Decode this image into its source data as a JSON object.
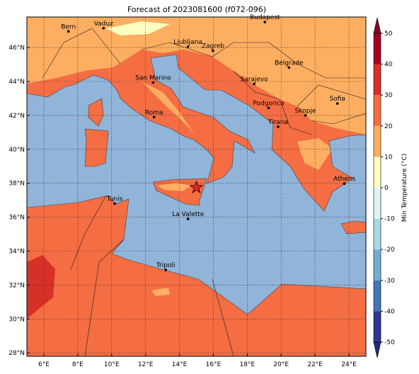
{
  "chart_data": {
    "type": "map",
    "title": "Forecast of 2023081600 (f072-096)",
    "xlim": [
      5,
      25
    ],
    "ylim": [
      27.8,
      47.8
    ],
    "xticks": [
      {
        "value": 6,
        "label": "6°E"
      },
      {
        "value": 8,
        "label": "8°E"
      },
      {
        "value": 10,
        "label": "10°E"
      },
      {
        "value": 12,
        "label": "12°E"
      },
      {
        "value": 14,
        "label": "14°E"
      },
      {
        "value": 16,
        "label": "16°E"
      },
      {
        "value": 18,
        "label": "18°E"
      },
      {
        "value": 20,
        "label": "20°E"
      },
      {
        "value": 22,
        "label": "22°E"
      },
      {
        "value": 24,
        "label": "24°E"
      }
    ],
    "yticks": [
      {
        "value": 28,
        "label": "28°N"
      },
      {
        "value": 30,
        "label": "30°N"
      },
      {
        "value": 32,
        "label": "32°N"
      },
      {
        "value": 34,
        "label": "34°N"
      },
      {
        "value": 36,
        "label": "36°N"
      },
      {
        "value": 38,
        "label": "38°N"
      },
      {
        "value": 40,
        "label": "40°N"
      },
      {
        "value": 42,
        "label": "42°N"
      },
      {
        "value": 44,
        "label": "44°N"
      },
      {
        "value": 46,
        "label": "46°N"
      }
    ],
    "grid": true,
    "colorbar": {
      "label": "Min Temperature (°C)",
      "lim": [
        -50,
        50
      ],
      "ticks": [
        -50,
        -40,
        -30,
        -20,
        -10,
        0,
        10,
        20,
        30,
        40,
        50
      ],
      "colors": [
        "#313695",
        "#4575b4",
        "#74add1",
        "#abd9e9",
        "#e0f3f8",
        "#ffffbf",
        "#fdae61",
        "#f46d43",
        "#d73027",
        "#a50026"
      ],
      "under_color": "#1f2a80",
      "over_color": "#8b0026"
    },
    "cities": [
      {
        "name": "Bern",
        "lon": 7.45,
        "lat": 46.95
      },
      {
        "name": "Vaduz",
        "lon": 9.52,
        "lat": 47.14
      },
      {
        "name": "Budapest",
        "lon": 19.04,
        "lat": 47.5
      },
      {
        "name": "Ljubljana",
        "lon": 14.5,
        "lat": 46.05
      },
      {
        "name": "Zagreb",
        "lon": 15.98,
        "lat": 45.81
      },
      {
        "name": "Belgrade",
        "lon": 20.46,
        "lat": 44.82
      },
      {
        "name": "San Marino",
        "lon": 12.45,
        "lat": 43.94
      },
      {
        "name": "Sarajevo",
        "lon": 18.41,
        "lat": 43.86
      },
      {
        "name": "Sofia",
        "lon": 23.32,
        "lat": 42.7
      },
      {
        "name": "Roma",
        "lon": 12.5,
        "lat": 41.9
      },
      {
        "name": "Podgorica",
        "lon": 19.26,
        "lat": 42.44
      },
      {
        "name": "Skopje",
        "lon": 21.43,
        "lat": 42.0
      },
      {
        "name": "Tirana",
        "lon": 19.82,
        "lat": 41.33
      },
      {
        "name": "Athens",
        "lon": 23.73,
        "lat": 37.98
      },
      {
        "name": "Tunis",
        "lon": 10.18,
        "lat": 36.8
      },
      {
        "name": "La Valette",
        "lon": 14.51,
        "lat": 35.9
      },
      {
        "name": "Tripoli",
        "lon": 13.19,
        "lat": 32.89
      }
    ],
    "marker": {
      "lon": 15.0,
      "lat": 37.75,
      "color": "#e8262a"
    }
  }
}
